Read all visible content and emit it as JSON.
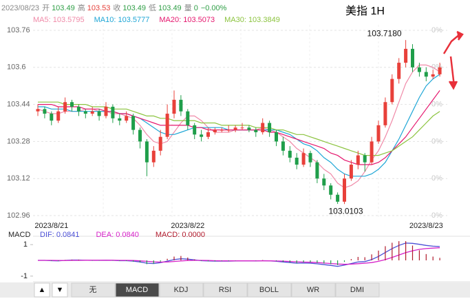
{
  "chart_data": {
    "type": "candlestick",
    "title": "美指 1H",
    "info": {
      "date": "2023/08/23",
      "items": [
        {
          "label": "开",
          "value": 103.49,
          "color": "#2e9e45"
        },
        {
          "label": "高",
          "value": 103.53,
          "color": "#e5403a"
        },
        {
          "label": "收",
          "value": 103.49,
          "color": "#2e9e45"
        },
        {
          "label": "低",
          "value": 103.49,
          "color": "#2e9e45"
        },
        {
          "label": "量",
          "value": 0,
          "color": "#2e9e45"
        }
      ],
      "change": "−0.00%",
      "change_color": "#2e9e45"
    },
    "categories": [
      null,
      null,
      "2023/8/21",
      null,
      null,
      null,
      null,
      null,
      null,
      null,
      null,
      null,
      null,
      null,
      null,
      null,
      null,
      null,
      null,
      null,
      null,
      null,
      "2023/8/22",
      null,
      null,
      null,
      null,
      null,
      null,
      null,
      null,
      null,
      null,
      null,
      null,
      null,
      null,
      null,
      null,
      null,
      null,
      null,
      null,
      null,
      null,
      null,
      null,
      null,
      null,
      null,
      null,
      null,
      null,
      null,
      null,
      null,
      null,
      "2023/8/23",
      null,
      null
    ],
    "candles": [
      [
        103.41,
        103.44,
        103.39,
        103.42
      ],
      [
        103.42,
        103.43,
        103.38,
        103.4
      ],
      [
        103.4,
        103.41,
        103.35,
        103.37
      ],
      [
        103.37,
        103.43,
        103.36,
        103.41
      ],
      [
        103.41,
        103.47,
        103.4,
        103.45
      ],
      [
        103.45,
        103.46,
        103.41,
        103.43
      ],
      [
        103.43,
        103.44,
        103.39,
        103.41
      ],
      [
        103.41,
        103.42,
        103.38,
        103.4
      ],
      [
        103.4,
        103.43,
        103.39,
        103.41
      ],
      [
        103.41,
        103.42,
        103.37,
        103.39
      ],
      [
        103.39,
        103.45,
        103.38,
        103.43
      ],
      [
        103.43,
        103.44,
        103.36,
        103.38
      ],
      [
        103.38,
        103.4,
        103.35,
        103.37
      ],
      [
        103.37,
        103.41,
        103.36,
        103.39
      ],
      [
        103.39,
        103.4,
        103.31,
        103.33
      ],
      [
        103.33,
        103.34,
        103.25,
        103.28
      ],
      [
        103.28,
        103.29,
        103.13,
        103.19
      ],
      [
        103.19,
        103.26,
        103.17,
        103.24
      ],
      [
        103.24,
        103.33,
        103.22,
        103.3
      ],
      [
        103.3,
        103.44,
        103.29,
        103.4
      ],
      [
        103.4,
        103.5,
        103.38,
        103.46
      ],
      [
        103.46,
        103.48,
        103.39,
        103.41
      ],
      [
        103.41,
        103.42,
        103.33,
        103.35
      ],
      [
        103.35,
        103.36,
        103.29,
        103.31
      ],
      [
        103.31,
        103.33,
        103.28,
        103.3
      ],
      [
        103.3,
        103.34,
        103.29,
        103.32
      ],
      [
        103.32,
        103.34,
        103.31,
        103.33
      ],
      [
        103.33,
        103.34,
        103.32,
        103.33
      ],
      [
        103.33,
        103.35,
        103.32,
        103.33
      ],
      [
        103.33,
        103.35,
        103.32,
        103.34
      ],
      [
        103.34,
        103.36,
        103.33,
        103.34
      ],
      [
        103.34,
        103.35,
        103.32,
        103.33
      ],
      [
        103.33,
        103.34,
        103.3,
        103.32
      ],
      [
        103.32,
        103.38,
        103.31,
        103.36
      ],
      [
        103.36,
        103.37,
        103.3,
        103.32
      ],
      [
        103.32,
        103.33,
        103.26,
        103.28
      ],
      [
        103.28,
        103.3,
        103.22,
        103.24
      ],
      [
        103.24,
        103.26,
        103.19,
        103.21
      ],
      [
        103.21,
        103.23,
        103.16,
        103.18
      ],
      [
        103.18,
        103.25,
        103.17,
        103.23
      ],
      [
        103.23,
        103.24,
        103.17,
        103.19
      ],
      [
        103.19,
        103.2,
        103.1,
        103.12
      ],
      [
        103.12,
        103.14,
        103.07,
        103.09
      ],
      [
        103.09,
        103.1,
        103.03,
        103.05
      ],
      [
        103.05,
        103.06,
        103.0103,
        103.02
      ],
      [
        103.02,
        103.14,
        103.01,
        103.12
      ],
      [
        103.12,
        103.2,
        103.11,
        103.18
      ],
      [
        103.18,
        103.24,
        103.16,
        103.22
      ],
      [
        103.22,
        103.23,
        103.15,
        103.19
      ],
      [
        103.19,
        103.3,
        103.18,
        103.28
      ],
      [
        103.28,
        103.37,
        103.27,
        103.35
      ],
      [
        103.35,
        103.47,
        103.34,
        103.45
      ],
      [
        103.45,
        103.57,
        103.44,
        103.55
      ],
      [
        103.55,
        103.64,
        103.53,
        103.62
      ],
      [
        103.62,
        103.718,
        103.6,
        103.68
      ],
      [
        103.68,
        103.7,
        103.58,
        103.6
      ],
      [
        103.6,
        103.62,
        103.56,
        103.58
      ],
      [
        103.58,
        103.6,
        103.54,
        103.56
      ],
      [
        103.56,
        103.59,
        103.55,
        103.57
      ],
      [
        103.57,
        103.62,
        103.56,
        103.6
      ]
    ],
    "up_color": "#e8403a",
    "down_color": "#1f9e4a",
    "ylim": [
      102.96,
      103.76
    ],
    "yticks": [
      103.76,
      103.6,
      103.44,
      103.28,
      103.12,
      102.96
    ],
    "right_ticks": [
      "0%",
      "0%",
      "0%",
      "0%",
      "0%",
      "0%"
    ],
    "grid": true,
    "high_label": "103.7180",
    "low_label": "103.0103",
    "series": [
      {
        "label": "MA5: 103.5795",
        "color": "#f08aa8",
        "values": [
          103.42,
          103.41,
          103.4,
          103.4,
          103.41,
          103.41,
          103.41,
          103.42,
          103.42,
          103.41,
          103.41,
          103.4,
          103.4,
          103.39,
          103.38,
          103.35,
          103.31,
          103.28,
          103.27,
          103.28,
          103.32,
          103.36,
          103.39,
          103.39,
          103.37,
          103.34,
          103.32,
          103.32,
          103.32,
          103.33,
          103.33,
          103.33,
          103.33,
          103.34,
          103.33,
          103.32,
          103.3,
          103.28,
          103.25,
          103.23,
          103.21,
          103.19,
          103.16,
          103.14,
          103.1,
          103.08,
          103.09,
          103.11,
          103.15,
          103.2,
          103.24,
          103.3,
          103.37,
          103.45,
          103.53,
          103.58,
          103.61,
          103.61,
          103.6,
          103.58
        ]
      },
      {
        "label": "MA10: 103.5777",
        "color": "#1ea6d6",
        "values": [
          103.43,
          103.43,
          103.42,
          103.42,
          103.42,
          103.41,
          103.41,
          103.41,
          103.41,
          103.41,
          103.41,
          103.41,
          103.4,
          103.4,
          103.39,
          103.38,
          103.36,
          103.34,
          103.32,
          103.31,
          103.31,
          103.32,
          103.33,
          103.34,
          103.34,
          103.34,
          103.34,
          103.34,
          103.33,
          103.33,
          103.33,
          103.33,
          103.33,
          103.33,
          103.33,
          103.33,
          103.32,
          103.31,
          103.29,
          103.27,
          103.26,
          103.24,
          103.21,
          103.19,
          103.16,
          103.14,
          103.13,
          103.13,
          103.13,
          103.14,
          103.16,
          103.19,
          103.24,
          103.29,
          103.35,
          103.41,
          103.47,
          103.52,
          103.55,
          103.57
        ]
      },
      {
        "label": "MA20: 103.5073",
        "color": "#e5176e",
        "values": [
          103.44,
          103.44,
          103.44,
          103.43,
          103.43,
          103.43,
          103.43,
          103.42,
          103.42,
          103.42,
          103.41,
          103.41,
          103.4,
          103.4,
          103.39,
          103.38,
          103.37,
          103.36,
          103.35,
          103.35,
          103.35,
          103.35,
          103.35,
          103.34,
          103.34,
          103.33,
          103.33,
          103.33,
          103.33,
          103.33,
          103.33,
          103.33,
          103.33,
          103.33,
          103.32,
          103.32,
          103.31,
          103.3,
          103.29,
          103.28,
          103.27,
          103.26,
          103.25,
          103.23,
          103.22,
          103.2,
          103.19,
          103.18,
          103.18,
          103.18,
          103.19,
          103.21,
          103.24,
          103.27,
          103.3,
          103.34,
          103.38,
          103.42,
          103.46,
          103.5
        ]
      },
      {
        "label": "MA30: 103.3849",
        "color": "#8bc33e",
        "values": [
          103.45,
          103.45,
          103.45,
          103.45,
          103.44,
          103.44,
          103.44,
          103.44,
          103.43,
          103.43,
          103.43,
          103.42,
          103.42,
          103.42,
          103.41,
          103.4,
          103.39,
          103.39,
          103.38,
          103.38,
          103.37,
          103.37,
          103.37,
          103.37,
          103.36,
          103.36,
          103.36,
          103.35,
          103.35,
          103.35,
          103.35,
          103.35,
          103.34,
          103.34,
          103.34,
          103.33,
          103.33,
          103.32,
          103.31,
          103.31,
          103.3,
          103.29,
          103.28,
          103.27,
          103.26,
          103.25,
          103.24,
          103.23,
          103.22,
          103.22,
          103.22,
          103.23,
          103.24,
          103.26,
          103.28,
          103.3,
          103.33,
          103.36,
          103.39,
          103.41
        ]
      }
    ],
    "indicator": {
      "name": "MACD",
      "ylim": [
        -1.4,
        1.4
      ],
      "yticks": [
        1,
        -1
      ],
      "series": [
        {
          "label": "DIF: 0.0841",
          "color": "#4b4fd6",
          "type": "line",
          "values": [
            0,
            0,
            -0.02,
            -0.03,
            0,
            0.02,
            0.02,
            0.01,
            0,
            0,
            0.01,
            0,
            -0.02,
            -0.02,
            -0.05,
            -0.1,
            -0.18,
            -0.2,
            -0.15,
            -0.05,
            0.05,
            0.1,
            0.08,
            0.03,
            -0.02,
            -0.04,
            -0.05,
            -0.05,
            -0.05,
            -0.04,
            -0.03,
            -0.03,
            -0.04,
            -0.02,
            -0.03,
            -0.06,
            -0.1,
            -0.14,
            -0.18,
            -0.17,
            -0.18,
            -0.22,
            -0.27,
            -0.32,
            -0.38,
            -0.3,
            -0.2,
            -0.1,
            -0.08,
            0.05,
            0.25,
            0.5,
            0.75,
            0.95,
            1.1,
            1.08,
            1.02,
            0.95,
            0.9,
            0.88
          ]
        },
        {
          "label": "DEA: 0.0840",
          "color": "#d61fc8",
          "type": "line",
          "values": [
            0,
            0,
            0,
            -0.01,
            -0.01,
            0,
            0,
            0.01,
            0.01,
            0.01,
            0.01,
            0.01,
            0,
            0,
            -0.01,
            -0.03,
            -0.06,
            -0.09,
            -0.11,
            -0.1,
            -0.07,
            -0.04,
            -0.01,
            0,
            0,
            -0.01,
            -0.02,
            -0.03,
            -0.03,
            -0.03,
            -0.03,
            -0.03,
            -0.03,
            -0.03,
            -0.03,
            -0.04,
            -0.05,
            -0.07,
            -0.09,
            -0.11,
            -0.12,
            -0.14,
            -0.17,
            -0.2,
            -0.23,
            -0.25,
            -0.24,
            -0.21,
            -0.18,
            -0.14,
            -0.06,
            0.05,
            0.19,
            0.34,
            0.49,
            0.61,
            0.7,
            0.75,
            0.78,
            0.8
          ]
        },
        {
          "label": "MACD: 0.0000",
          "color": "#b0182a",
          "type": "bar",
          "values": [
            0,
            0,
            -0.04,
            -0.04,
            0.02,
            0.04,
            0.04,
            0,
            -0.02,
            -0.02,
            0,
            -0.02,
            -0.04,
            -0.04,
            -0.08,
            -0.14,
            -0.24,
            -0.22,
            -0.08,
            0.1,
            0.24,
            0.28,
            0.18,
            0.06,
            -0.04,
            -0.06,
            -0.06,
            -0.04,
            -0.04,
            -0.02,
            0,
            0,
            -0.02,
            0.02,
            0,
            -0.04,
            -0.1,
            -0.14,
            -0.18,
            -0.12,
            -0.12,
            -0.16,
            -0.2,
            -0.24,
            -0.3,
            -0.1,
            0.08,
            0.22,
            0.2,
            0.38,
            0.62,
            0.9,
            1.12,
            1.22,
            1.22,
            0.94,
            0.64,
            0.4,
            0.24,
            0.16
          ]
        }
      ]
    }
  },
  "tabs": {
    "arrows": [
      "▲",
      "▼"
    ],
    "items": [
      "无",
      "MACD",
      "KDJ",
      "RSI",
      "BOLL",
      "WR",
      "DMI"
    ],
    "selected": "MACD"
  }
}
